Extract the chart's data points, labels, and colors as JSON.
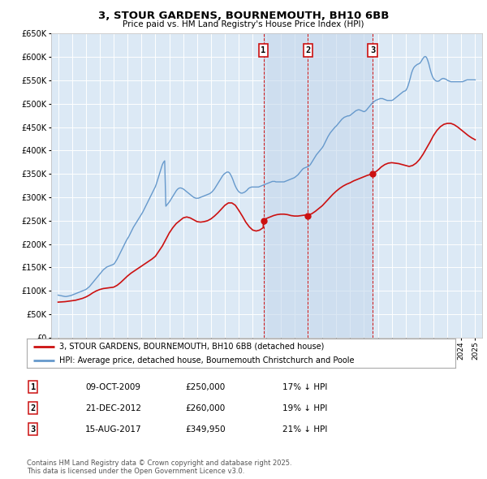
{
  "title": "3, STOUR GARDENS, BOURNEMOUTH, BH10 6BB",
  "subtitle": "Price paid vs. HM Land Registry's House Price Index (HPI)",
  "background_color": "#ffffff",
  "plot_bg_color": "#dce9f5",
  "plot_bg_shaded": "#c8dcee",
  "grid_color": "#ffffff",
  "ylim": [
    0,
    650000
  ],
  "ytick_step": 50000,
  "xlim_start": 1994.5,
  "xlim_end": 2025.5,
  "legend_red_label": "3, STOUR GARDENS, BOURNEMOUTH, BH10 6BB (detached house)",
  "legend_blue_label": "HPI: Average price, detached house, Bournemouth Christchurch and Poole",
  "transactions": [
    {
      "label": "1",
      "date": 2009.77,
      "price": 250000,
      "text": "09-OCT-2009",
      "price_str": "£250,000",
      "pct": "17% ↓ HPI"
    },
    {
      "label": "2",
      "date": 2012.97,
      "price": 260000,
      "text": "21-DEC-2012",
      "price_str": "£260,000",
      "pct": "19% ↓ HPI"
    },
    {
      "label": "3",
      "date": 2017.62,
      "price": 349950,
      "text": "15-AUG-2017",
      "price_str": "£349,950",
      "pct": "21% ↓ HPI"
    }
  ],
  "footer": "Contains HM Land Registry data © Crown copyright and database right 2025.\nThis data is licensed under the Open Government Licence v3.0.",
  "hpi_years": [
    1995,
    1995.083,
    1995.167,
    1995.25,
    1995.333,
    1995.417,
    1995.5,
    1995.583,
    1995.667,
    1995.75,
    1995.833,
    1995.917,
    1996,
    1996.083,
    1996.167,
    1996.25,
    1996.333,
    1996.417,
    1996.5,
    1996.583,
    1996.667,
    1996.75,
    1996.833,
    1996.917,
    1997,
    1997.083,
    1997.167,
    1997.25,
    1997.333,
    1997.417,
    1997.5,
    1997.583,
    1997.667,
    1997.75,
    1997.833,
    1997.917,
    1998,
    1998.083,
    1998.167,
    1998.25,
    1998.333,
    1998.417,
    1998.5,
    1998.583,
    1998.667,
    1998.75,
    1998.833,
    1998.917,
    1999,
    1999.083,
    1999.167,
    1999.25,
    1999.333,
    1999.417,
    1999.5,
    1999.583,
    1999.667,
    1999.75,
    1999.833,
    1999.917,
    2000,
    2000.083,
    2000.167,
    2000.25,
    2000.333,
    2000.417,
    2000.5,
    2000.583,
    2000.667,
    2000.75,
    2000.833,
    2000.917,
    2001,
    2001.083,
    2001.167,
    2001.25,
    2001.333,
    2001.417,
    2001.5,
    2001.583,
    2001.667,
    2001.75,
    2001.833,
    2001.917,
    2002,
    2002.083,
    2002.167,
    2002.25,
    2002.333,
    2002.417,
    2002.5,
    2002.583,
    2002.667,
    2002.75,
    2002.833,
    2002.917,
    2003,
    2003.083,
    2003.167,
    2003.25,
    2003.333,
    2003.417,
    2003.5,
    2003.583,
    2003.667,
    2003.75,
    2003.833,
    2003.917,
    2004,
    2004.083,
    2004.167,
    2004.25,
    2004.333,
    2004.417,
    2004.5,
    2004.583,
    2004.667,
    2004.75,
    2004.833,
    2004.917,
    2005,
    2005.083,
    2005.167,
    2005.25,
    2005.333,
    2005.417,
    2005.5,
    2005.583,
    2005.667,
    2005.75,
    2005.833,
    2005.917,
    2006,
    2006.083,
    2006.167,
    2006.25,
    2006.333,
    2006.417,
    2006.5,
    2006.583,
    2006.667,
    2006.75,
    2006.833,
    2006.917,
    2007,
    2007.083,
    2007.167,
    2007.25,
    2007.333,
    2007.417,
    2007.5,
    2007.583,
    2007.667,
    2007.75,
    2007.833,
    2007.917,
    2008,
    2008.083,
    2008.167,
    2008.25,
    2008.333,
    2008.417,
    2008.5,
    2008.583,
    2008.667,
    2008.75,
    2008.833,
    2008.917,
    2009,
    2009.083,
    2009.167,
    2009.25,
    2009.333,
    2009.417,
    2009.5,
    2009.583,
    2009.667,
    2009.75,
    2009.833,
    2009.917,
    2010,
    2010.083,
    2010.167,
    2010.25,
    2010.333,
    2010.417,
    2010.5,
    2010.583,
    2010.667,
    2010.75,
    2010.833,
    2010.917,
    2011,
    2011.083,
    2011.167,
    2011.25,
    2011.333,
    2011.417,
    2011.5,
    2011.583,
    2011.667,
    2011.75,
    2011.833,
    2011.917,
    2012,
    2012.083,
    2012.167,
    2012.25,
    2012.333,
    2012.417,
    2012.5,
    2012.583,
    2012.667,
    2012.75,
    2012.833,
    2012.917,
    2013,
    2013.083,
    2013.167,
    2013.25,
    2013.333,
    2013.417,
    2013.5,
    2013.583,
    2013.667,
    2013.75,
    2013.833,
    2013.917,
    2014,
    2014.083,
    2014.167,
    2014.25,
    2014.333,
    2014.417,
    2014.5,
    2014.583,
    2014.667,
    2014.75,
    2014.833,
    2014.917,
    2015,
    2015.083,
    2015.167,
    2015.25,
    2015.333,
    2015.417,
    2015.5,
    2015.583,
    2015.667,
    2015.75,
    2015.833,
    2015.917,
    2016,
    2016.083,
    2016.167,
    2016.25,
    2016.333,
    2016.417,
    2016.5,
    2016.583,
    2016.667,
    2016.75,
    2016.833,
    2016.917,
    2017,
    2017.083,
    2017.167,
    2017.25,
    2017.333,
    2017.417,
    2017.5,
    2017.583,
    2017.667,
    2017.75,
    2017.833,
    2017.917,
    2018,
    2018.083,
    2018.167,
    2018.25,
    2018.333,
    2018.417,
    2018.5,
    2018.583,
    2018.667,
    2018.75,
    2018.833,
    2018.917,
    2019,
    2019.083,
    2019.167,
    2019.25,
    2019.333,
    2019.417,
    2019.5,
    2019.583,
    2019.667,
    2019.75,
    2019.833,
    2019.917,
    2020,
    2020.083,
    2020.167,
    2020.25,
    2020.333,
    2020.417,
    2020.5,
    2020.583,
    2020.667,
    2020.75,
    2020.833,
    2020.917,
    2021,
    2021.083,
    2021.167,
    2021.25,
    2021.333,
    2021.417,
    2021.5,
    2021.583,
    2021.667,
    2021.75,
    2021.833,
    2021.917,
    2022,
    2022.083,
    2022.167,
    2022.25,
    2022.333,
    2022.417,
    2022.5,
    2022.583,
    2022.667,
    2022.75,
    2022.833,
    2022.917,
    2023,
    2023.083,
    2023.167,
    2023.25,
    2023.333,
    2023.417,
    2023.5,
    2023.583,
    2023.667,
    2023.75,
    2023.833,
    2023.917,
    2024,
    2024.083,
    2024.167,
    2024.25,
    2024.333,
    2024.417,
    2024.5,
    2024.583,
    2024.667,
    2024.75,
    2024.833,
    2024.917,
    2025
  ],
  "hpi_values": [
    91000,
    90500,
    90000,
    89500,
    89000,
    88500,
    88000,
    88000,
    88500,
    89000,
    89500,
    90000,
    91000,
    92000,
    93000,
    94000,
    95000,
    96000,
    97000,
    98000,
    99000,
    100000,
    101000,
    102000,
    103000,
    105000,
    107000,
    109000,
    112000,
    115000,
    118000,
    121000,
    124000,
    127000,
    130000,
    133000,
    136000,
    139000,
    142000,
    145000,
    147000,
    149000,
    151000,
    152000,
    153000,
    154000,
    155000,
    156000,
    157000,
    160000,
    164000,
    168000,
    173000,
    178000,
    183000,
    188000,
    193000,
    198000,
    203000,
    208000,
    212000,
    216000,
    221000,
    226000,
    231000,
    236000,
    240000,
    244000,
    248000,
    252000,
    256000,
    260000,
    264000,
    268000,
    273000,
    278000,
    283000,
    288000,
    293000,
    298000,
    303000,
    308000,
    313000,
    318000,
    323000,
    330000,
    338000,
    346000,
    354000,
    362000,
    370000,
    375000,
    378000,
    281000,
    284000,
    287000,
    290000,
    294000,
    298000,
    302000,
    306000,
    310000,
    314000,
    317000,
    319000,
    320000,
    320000,
    319000,
    318000,
    316000,
    314000,
    312000,
    310000,
    308000,
    306000,
    304000,
    302000,
    300000,
    299000,
    298000,
    298000,
    298000,
    299000,
    300000,
    301000,
    302000,
    303000,
    304000,
    305000,
    306000,
    307000,
    308000,
    310000,
    312000,
    315000,
    318000,
    322000,
    326000,
    330000,
    334000,
    338000,
    342000,
    346000,
    349000,
    351000,
    353000,
    354000,
    354000,
    352000,
    348000,
    343000,
    337000,
    330000,
    324000,
    319000,
    315000,
    312000,
    310000,
    309000,
    309000,
    310000,
    311000,
    313000,
    315000,
    318000,
    320000,
    321000,
    322000,
    322000,
    322000,
    322000,
    322000,
    322000,
    322000,
    323000,
    324000,
    325000,
    326000,
    327000,
    328000,
    329000,
    330000,
    331000,
    332000,
    333000,
    334000,
    334000,
    334000,
    333000,
    333000,
    333000,
    333000,
    333000,
    333000,
    333000,
    333000,
    334000,
    335000,
    336000,
    337000,
    338000,
    339000,
    340000,
    341000,
    342000,
    344000,
    346000,
    348000,
    351000,
    354000,
    357000,
    360000,
    362000,
    363000,
    364000,
    365000,
    366000,
    368000,
    371000,
    375000,
    379000,
    383000,
    387000,
    391000,
    394000,
    397000,
    400000,
    403000,
    406000,
    410000,
    415000,
    420000,
    425000,
    430000,
    434000,
    438000,
    441000,
    444000,
    447000,
    450000,
    452000,
    455000,
    458000,
    461000,
    464000,
    467000,
    469000,
    471000,
    472000,
    473000,
    474000,
    474000,
    475000,
    477000,
    479000,
    481000,
    483000,
    485000,
    486000,
    487000,
    487000,
    486000,
    485000,
    484000,
    483000,
    484000,
    486000,
    489000,
    492000,
    495000,
    498000,
    501000,
    503000,
    505000,
    507000,
    508000,
    509000,
    510000,
    511000,
    511000,
    511000,
    510000,
    509000,
    508000,
    507000,
    507000,
    507000,
    507000,
    507000,
    508000,
    510000,
    512000,
    514000,
    516000,
    518000,
    520000,
    522000,
    524000,
    526000,
    527000,
    528000,
    532000,
    538000,
    546000,
    555000,
    565000,
    572000,
    577000,
    580000,
    582000,
    584000,
    585000,
    586000,
    589000,
    593000,
    597000,
    600000,
    601000,
    599000,
    593000,
    585000,
    575000,
    566000,
    559000,
    554000,
    551000,
    549000,
    548000,
    548000,
    549000,
    551000,
    553000,
    554000,
    554000,
    553000,
    552000,
    550000,
    549000,
    548000,
    547000,
    547000,
    547000,
    547000,
    547000,
    547000,
    547000,
    547000,
    547000,
    547000,
    547000,
    548000,
    549000,
    550000,
    551000,
    551000,
    551000,
    551000,
    551000,
    551000,
    551000,
    551000
  ],
  "red_years": [
    1995,
    1995.25,
    1995.5,
    1995.75,
    1996,
    1996.25,
    1996.5,
    1996.75,
    1997,
    1997.25,
    1997.5,
    1997.75,
    1998,
    1998.25,
    1998.5,
    1998.75,
    1999,
    1999.25,
    1999.5,
    1999.75,
    2000,
    2000.25,
    2000.5,
    2000.75,
    2001,
    2001.25,
    2001.5,
    2001.75,
    2002,
    2002.25,
    2002.5,
    2002.75,
    2003,
    2003.25,
    2003.5,
    2003.75,
    2004,
    2004.25,
    2004.5,
    2004.75,
    2005,
    2005.25,
    2005.5,
    2005.75,
    2006,
    2006.25,
    2006.5,
    2006.75,
    2007,
    2007.25,
    2007.5,
    2007.75,
    2008,
    2008.25,
    2008.5,
    2008.75,
    2009,
    2009.25,
    2009.5,
    2009.75,
    2009.77,
    2010,
    2010.25,
    2010.5,
    2010.75,
    2011,
    2011.25,
    2011.5,
    2011.75,
    2012,
    2012.25,
    2012.5,
    2012.75,
    2012.97,
    2013,
    2013.25,
    2013.5,
    2013.75,
    2014,
    2014.25,
    2014.5,
    2014.75,
    2015,
    2015.25,
    2015.5,
    2015.75,
    2016,
    2016.25,
    2016.5,
    2016.75,
    2017,
    2017.25,
    2017.5,
    2017.62,
    2018,
    2018.25,
    2018.5,
    2018.75,
    2019,
    2019.25,
    2019.5,
    2019.75,
    2020,
    2020.25,
    2020.5,
    2020.75,
    2021,
    2021.25,
    2021.5,
    2021.75,
    2022,
    2022.25,
    2022.5,
    2022.75,
    2023,
    2023.25,
    2023.5,
    2023.75,
    2024,
    2024.25,
    2024.5,
    2024.75,
    2025
  ],
  "red_values": [
    76000,
    76500,
    77000,
    78000,
    79000,
    80000,
    82000,
    84000,
    87000,
    91000,
    96000,
    100000,
    103000,
    105000,
    106000,
    107000,
    108000,
    112000,
    118000,
    125000,
    132000,
    138000,
    143000,
    148000,
    153000,
    158000,
    163000,
    168000,
    174000,
    185000,
    196000,
    210000,
    224000,
    235000,
    244000,
    250000,
    256000,
    258000,
    256000,
    252000,
    248000,
    247000,
    248000,
    250000,
    254000,
    260000,
    267000,
    275000,
    283000,
    288000,
    288000,
    283000,
    272000,
    260000,
    247000,
    237000,
    230000,
    228000,
    230000,
    235000,
    250000,
    255000,
    258000,
    261000,
    263000,
    264000,
    264000,
    263000,
    261000,
    260000,
    260000,
    261000,
    262000,
    260000,
    262000,
    265000,
    270000,
    276000,
    282000,
    290000,
    298000,
    306000,
    313000,
    319000,
    324000,
    328000,
    331000,
    335000,
    338000,
    341000,
    344000,
    347000,
    349000,
    349950,
    358000,
    365000,
    370000,
    373000,
    374000,
    373000,
    372000,
    370000,
    368000,
    366000,
    368000,
    373000,
    381000,
    392000,
    405000,
    418000,
    432000,
    443000,
    451000,
    456000,
    458000,
    458000,
    455000,
    450000,
    444000,
    438000,
    432000,
    427000,
    423000
  ]
}
